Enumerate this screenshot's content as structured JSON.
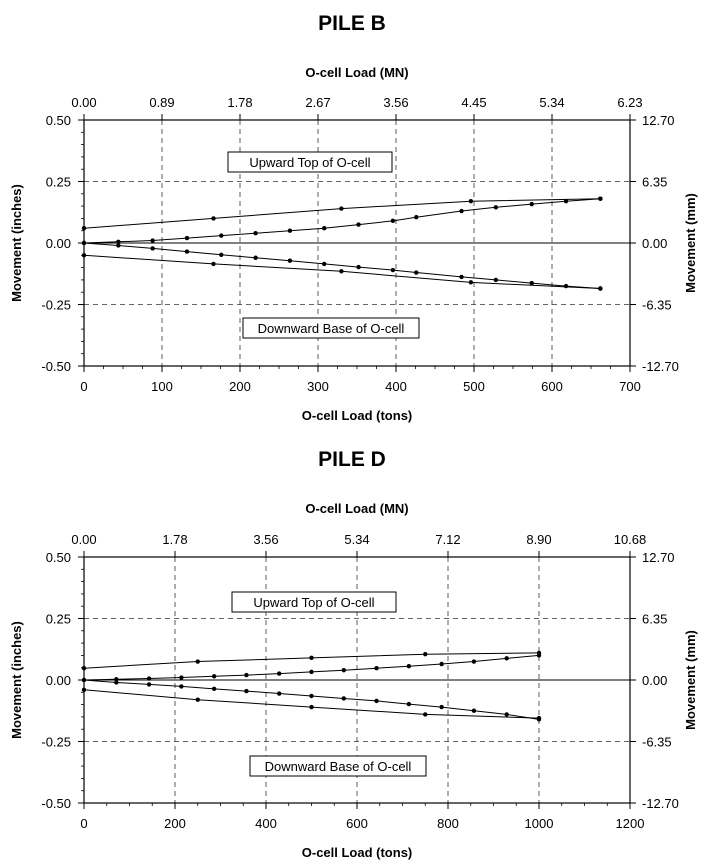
{
  "chart_data": [
    {
      "type": "line",
      "title": "PILE B",
      "xlabel": "O-cell Load (tons)",
      "xlabel_top": "O-cell Load (MN)",
      "ylabel": "Movement (inches)",
      "ylabel_right": "Movement (mm)",
      "xlim": [
        0,
        700
      ],
      "ylim": [
        -0.5,
        0.5
      ],
      "x_ticks": [
        "0",
        "100",
        "200",
        "300",
        "400",
        "500",
        "600",
        "700"
      ],
      "x_ticks_top": [
        "0.00",
        "0.89",
        "1.78",
        "2.67",
        "3.56",
        "4.45",
        "5.34",
        "6.23"
      ],
      "y_ticks": [
        "0.50",
        "0.25",
        "0.00",
        "-0.25",
        "-0.50"
      ],
      "y_ticks_right": [
        "12.70",
        "6.35",
        "0.00",
        "-6.35",
        "-12.70"
      ],
      "grid": true,
      "annotations": [
        "Upward Top of O-cell",
        "Downward Base of O-cell"
      ],
      "series": [
        {
          "x": [
            0,
            44,
            88,
            132,
            176,
            220,
            264,
            308,
            352,
            396,
            426,
            484,
            528,
            574,
            618,
            662
          ],
          "values": [
            0.0,
            0.005,
            0.01,
            0.02,
            0.03,
            0.04,
            0.05,
            0.06,
            0.075,
            0.09,
            0.105,
            0.13,
            0.145,
            0.158,
            0.17,
            0.18
          ]
        },
        {
          "x": [
            662,
            496,
            330,
            166,
            0
          ],
          "values": [
            0.18,
            0.17,
            0.14,
            0.1,
            0.06
          ]
        },
        {
          "x": [
            0,
            44,
            88,
            132,
            176,
            220,
            264,
            308,
            352,
            396,
            426,
            484,
            528,
            574,
            618,
            662
          ],
          "values": [
            0.0,
            -0.01,
            -0.022,
            -0.035,
            -0.048,
            -0.06,
            -0.072,
            -0.085,
            -0.098,
            -0.11,
            -0.12,
            -0.138,
            -0.15,
            -0.163,
            -0.175,
            -0.185
          ]
        },
        {
          "x": [
            662,
            496,
            330,
            166,
            0
          ],
          "values": [
            -0.185,
            -0.16,
            -0.115,
            -0.085,
            -0.05
          ]
        }
      ]
    },
    {
      "type": "line",
      "title": "PILE D",
      "xlabel": "O-cell Load (tons)",
      "xlabel_top": "O-cell Load (MN)",
      "ylabel": "Movement (inches)",
      "ylabel_right": "Movement (mm)",
      "xlim": [
        0,
        1200
      ],
      "ylim": [
        -0.5,
        0.5
      ],
      "x_ticks": [
        "0",
        "200",
        "400",
        "600",
        "800",
        "1000",
        "1200"
      ],
      "x_ticks_top": [
        "0.00",
        "1.78",
        "3.56",
        "5.34",
        "7.12",
        "8.90",
        "10.68"
      ],
      "y_ticks": [
        "0.50",
        "0.25",
        "0.00",
        "-0.25",
        "-0.50"
      ],
      "y_ticks_right": [
        "12.70",
        "6.35",
        "0.00",
        "-6.35",
        "-12.70"
      ],
      "grid": true,
      "annotations": [
        "Upward Top of O-cell",
        "Downward Base of O-cell"
      ],
      "series": [
        {
          "x": [
            0,
            71,
            143,
            214,
            286,
            357,
            429,
            500,
            571,
            643,
            714,
            786,
            857,
            929,
            1000
          ],
          "values": [
            0.0,
            0.003,
            0.006,
            0.01,
            0.015,
            0.02,
            0.026,
            0.033,
            0.04,
            0.048,
            0.056,
            0.065,
            0.075,
            0.088,
            0.1
          ]
        },
        {
          "x": [
            1000,
            750,
            500,
            250,
            0
          ],
          "values": [
            0.11,
            0.105,
            0.09,
            0.075,
            0.048
          ]
        },
        {
          "x": [
            0,
            71,
            143,
            214,
            286,
            357,
            429,
            500,
            571,
            643,
            714,
            786,
            857,
            929,
            1000
          ],
          "values": [
            0.0,
            -0.01,
            -0.018,
            -0.026,
            -0.036,
            -0.045,
            -0.055,
            -0.065,
            -0.075,
            -0.085,
            -0.098,
            -0.11,
            -0.125,
            -0.14,
            -0.16
          ]
        },
        {
          "x": [
            1000,
            750,
            500,
            250,
            0
          ],
          "values": [
            -0.155,
            -0.14,
            -0.11,
            -0.08,
            -0.04
          ]
        }
      ]
    }
  ]
}
